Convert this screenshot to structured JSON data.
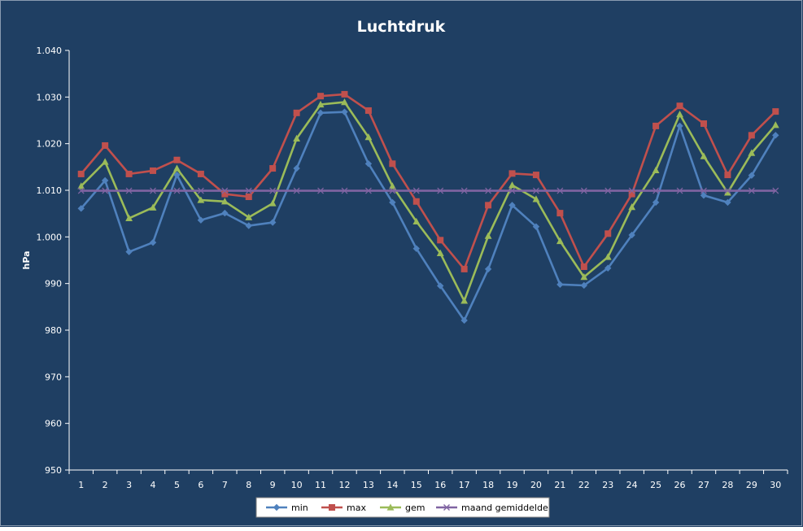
{
  "chart_data": {
    "type": "line",
    "title": "Luchtdruk",
    "xlabel": "",
    "ylabel": "hPa",
    "ylim": [
      950,
      1040
    ],
    "yticks": [
      950,
      960,
      970,
      980,
      990,
      1000,
      1010,
      1020,
      1030,
      1040
    ],
    "ytick_labels": [
      "950",
      "960",
      "970",
      "980",
      "990",
      "1.000",
      "1.010",
      "1.020",
      "1.030",
      "1.040"
    ],
    "categories": [
      "1",
      "2",
      "3",
      "4",
      "5",
      "6",
      "7",
      "8",
      "9",
      "10",
      "11",
      "12",
      "13",
      "14",
      "15",
      "16",
      "17",
      "18",
      "19",
      "20",
      "21",
      "22",
      "23",
      "24",
      "25",
      "26",
      "27",
      "28",
      "29",
      "30"
    ],
    "grid": false,
    "legend_position": "bottom",
    "series": [
      {
        "name": "min",
        "color": "#4f81bd",
        "marker": "diamond",
        "values": [
          1006.1,
          1012.1,
          996.8,
          998.8,
          1013.3,
          1003.6,
          1005.1,
          1002.4,
          1003.1,
          1014.7,
          1026.6,
          1026.8,
          1015.7,
          1007.4,
          997.5,
          989.5,
          982.1,
          993.1,
          1006.8,
          1002.2,
          989.8,
          989.6,
          993.3,
          1000.4,
          1007.4,
          1023.8,
          1008.9,
          1007.4,
          1013.2,
          1021.8
        ]
      },
      {
        "name": "max",
        "color": "#c0504d",
        "marker": "square",
        "values": [
          1013.5,
          1019.6,
          1013.5,
          1014.2,
          1016.5,
          1013.5,
          1009.2,
          1008.6,
          1014.7,
          1026.6,
          1030.2,
          1030.6,
          1027.1,
          1015.7,
          1007.6,
          999.3,
          993.1,
          1006.8,
          1013.6,
          1013.3,
          1005.1,
          993.6,
          1000.7,
          1009.2,
          1023.8,
          1028.1,
          1024.3,
          1013.3,
          1021.8,
          1026.9
        ]
      },
      {
        "name": "gem",
        "color": "#9bbb59",
        "marker": "triangle",
        "values": [
          1010.9,
          1016.1,
          1004.0,
          1006.3,
          1014.7,
          1007.9,
          1007.6,
          1004.2,
          1007.2,
          1021.1,
          1028.4,
          1028.9,
          1021.4,
          1010.9,
          1003.3,
          996.5,
          986.3,
          1000.2,
          1011.1,
          1008.1,
          999.1,
          991.4,
          995.7,
          1006.4,
          1014.3,
          1026.3,
          1017.3,
          1009.5,
          1018.0,
          1024.0
        ]
      },
      {
        "name": "maand gemiddelde",
        "color": "#8064a2",
        "marker": "x",
        "values": [
          1009.9,
          1009.9,
          1009.9,
          1009.9,
          1009.9,
          1009.9,
          1009.9,
          1009.9,
          1009.9,
          1009.9,
          1009.9,
          1009.9,
          1009.9,
          1009.9,
          1009.9,
          1009.9,
          1009.9,
          1009.9,
          1009.9,
          1009.9,
          1009.9,
          1009.9,
          1009.9,
          1009.9,
          1009.9,
          1009.9,
          1009.9,
          1009.9,
          1009.9,
          1009.9
        ]
      }
    ],
    "colors": {
      "background": "#1f3f63",
      "axis": "#ffffff",
      "text": "#ffffff",
      "legend_background": "#ffffff",
      "legend_text": "#000000"
    }
  }
}
